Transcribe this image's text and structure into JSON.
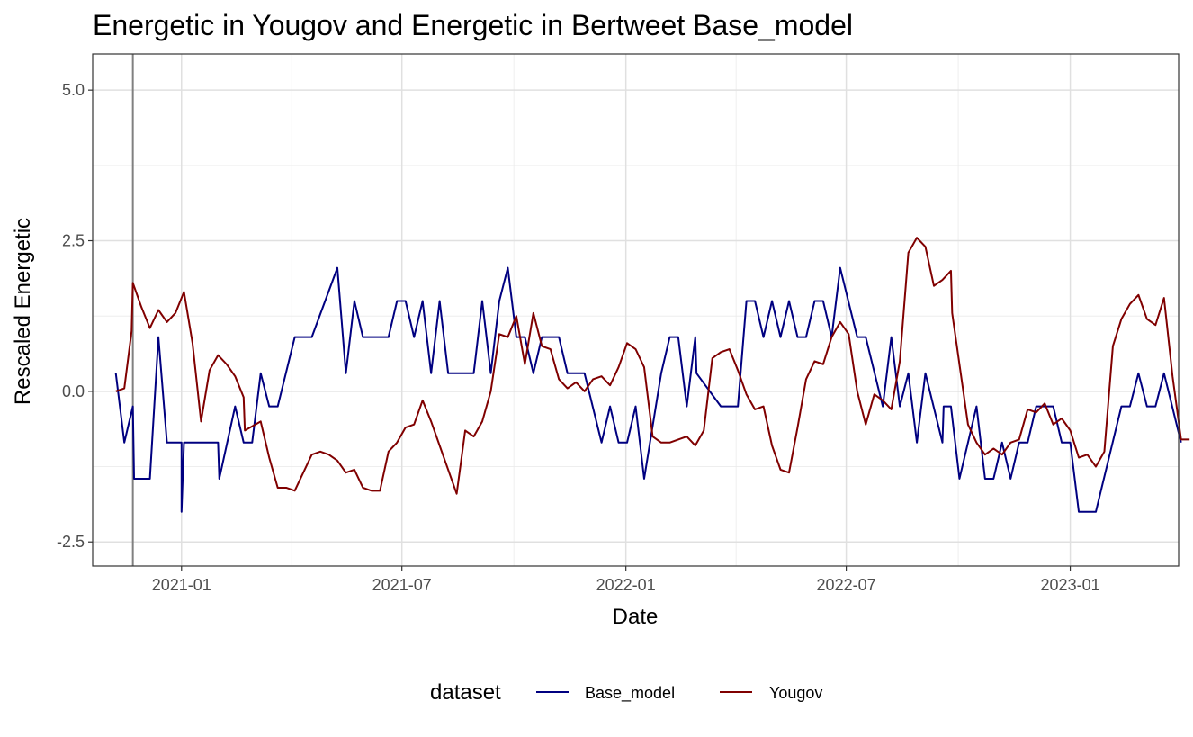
{
  "chart_data": {
    "type": "line",
    "title": "Energetic  in Yougov and  Energetic  in Bertweet  Base_model",
    "xlabel": "Date",
    "ylabel": "Rescaled  Energetic",
    "xlim": [
      "2020-10-20",
      "2023-03-31"
    ],
    "ylim": [
      -2.9,
      5.6
    ],
    "x_ticks": [
      "2021-01-01",
      "2021-07-01",
      "2022-01-01",
      "2022-07-01",
      "2023-01-01"
    ],
    "x_tick_labels": [
      "2021-01",
      "2021-07",
      "2022-01",
      "2022-07",
      "2023-01"
    ],
    "y_ticks": [
      -2.5,
      0.0,
      2.5,
      5.0
    ],
    "y_tick_labels": [
      "-2.5",
      "0.0",
      "2.5",
      "5.0"
    ],
    "grid": true,
    "vline": "2020-11-22",
    "vline_color": "#808080",
    "legend": {
      "title": "dataset",
      "position": "bottom",
      "entries": [
        {
          "label": "Base_model",
          "color": "#000080"
        },
        {
          "label": "Yougov",
          "color": "#800000"
        }
      ]
    },
    "series": [
      {
        "name": "Base_model",
        "color": "#000080",
        "points": [
          [
            "2020-11-08",
            0.3
          ],
          [
            "2020-11-15",
            -0.85
          ],
          [
            "2020-11-22",
            -0.25
          ],
          [
            "2020-11-23",
            -1.45
          ],
          [
            "2020-11-29",
            -1.45
          ],
          [
            "2020-12-06",
            -1.45
          ],
          [
            "2020-12-13",
            0.9
          ],
          [
            "2020-12-20",
            -0.85
          ],
          [
            "2021-01-01",
            -0.85
          ],
          [
            "2021-01-01",
            -2.0
          ],
          [
            "2021-01-03",
            -0.85
          ],
          [
            "2021-01-31",
            -0.85
          ],
          [
            "2021-02-01",
            -1.45
          ],
          [
            "2021-02-14",
            -0.25
          ],
          [
            "2021-02-21",
            -0.85
          ],
          [
            "2021-02-28",
            -0.85
          ],
          [
            "2021-03-07",
            0.3
          ],
          [
            "2021-03-14",
            -0.25
          ],
          [
            "2021-03-21",
            -0.25
          ],
          [
            "2021-04-04",
            0.9
          ],
          [
            "2021-04-18",
            0.9
          ],
          [
            "2021-05-09",
            2.05
          ],
          [
            "2021-05-16",
            0.3
          ],
          [
            "2021-05-23",
            1.5
          ],
          [
            "2021-05-30",
            0.9
          ],
          [
            "2021-06-20",
            0.9
          ],
          [
            "2021-06-27",
            1.5
          ],
          [
            "2021-07-04",
            1.5
          ],
          [
            "2021-07-11",
            0.9
          ],
          [
            "2021-07-18",
            1.5
          ],
          [
            "2021-07-25",
            0.3
          ],
          [
            "2021-08-01",
            1.5
          ],
          [
            "2021-08-08",
            0.3
          ],
          [
            "2021-08-29",
            0.3
          ],
          [
            "2021-09-05",
            1.5
          ],
          [
            "2021-09-12",
            0.3
          ],
          [
            "2021-09-19",
            1.5
          ],
          [
            "2021-09-26",
            2.05
          ],
          [
            "2021-10-03",
            0.9
          ],
          [
            "2021-10-10",
            0.9
          ],
          [
            "2021-10-17",
            0.3
          ],
          [
            "2021-10-24",
            0.9
          ],
          [
            "2021-11-07",
            0.9
          ],
          [
            "2021-11-14",
            0.3
          ],
          [
            "2021-11-28",
            0.3
          ],
          [
            "2021-12-12",
            -0.85
          ],
          [
            "2021-12-19",
            -0.25
          ],
          [
            "2021-12-26",
            -0.85
          ],
          [
            "2022-01-02",
            -0.85
          ],
          [
            "2022-01-09",
            -0.25
          ],
          [
            "2022-01-16",
            -1.45
          ],
          [
            "2022-01-30",
            0.3
          ],
          [
            "2022-02-06",
            0.9
          ],
          [
            "2022-02-13",
            0.9
          ],
          [
            "2022-02-20",
            -0.25
          ],
          [
            "2022-02-27",
            0.9
          ],
          [
            "2022-02-28",
            0.3
          ],
          [
            "2022-03-20",
            -0.25
          ],
          [
            "2022-04-03",
            -0.25
          ],
          [
            "2022-04-10",
            1.5
          ],
          [
            "2022-04-17",
            1.5
          ],
          [
            "2022-04-24",
            0.9
          ],
          [
            "2022-05-01",
            1.5
          ],
          [
            "2022-05-08",
            0.9
          ],
          [
            "2022-05-15",
            1.5
          ],
          [
            "2022-05-22",
            0.9
          ],
          [
            "2022-05-29",
            0.9
          ],
          [
            "2022-06-05",
            1.5
          ],
          [
            "2022-06-12",
            1.5
          ],
          [
            "2022-06-19",
            0.9
          ],
          [
            "2022-06-26",
            2.05
          ],
          [
            "2022-07-10",
            0.9
          ],
          [
            "2022-07-17",
            0.9
          ],
          [
            "2022-07-31",
            -0.25
          ],
          [
            "2022-08-07",
            0.9
          ],
          [
            "2022-08-14",
            -0.25
          ],
          [
            "2022-08-21",
            0.3
          ],
          [
            "2022-08-28",
            -0.85
          ],
          [
            "2022-09-04",
            0.3
          ],
          [
            "2022-09-18",
            -0.85
          ],
          [
            "2022-09-19",
            -0.25
          ],
          [
            "2022-09-25",
            -0.25
          ],
          [
            "2022-10-02",
            -1.45
          ],
          [
            "2022-10-16",
            -0.25
          ],
          [
            "2022-10-23",
            -1.45
          ],
          [
            "2022-10-30",
            -1.45
          ],
          [
            "2022-11-06",
            -0.85
          ],
          [
            "2022-11-13",
            -1.45
          ],
          [
            "2022-11-20",
            -0.85
          ],
          [
            "2022-11-27",
            -0.85
          ],
          [
            "2022-12-04",
            -0.25
          ],
          [
            "2022-12-11",
            -0.25
          ],
          [
            "2022-12-18",
            -0.25
          ],
          [
            "2022-12-25",
            -0.85
          ],
          [
            "2023-01-01",
            -0.85
          ],
          [
            "2023-01-08",
            -2.0
          ],
          [
            "2023-01-22",
            -2.0
          ],
          [
            "2023-02-12",
            -0.25
          ],
          [
            "2023-02-19",
            -0.25
          ],
          [
            "2023-02-26",
            0.3
          ],
          [
            "2023-03-05",
            -0.25
          ],
          [
            "2023-03-12",
            -0.25
          ],
          [
            "2023-03-19",
            0.3
          ],
          [
            "2023-04-02",
            -0.85
          ]
        ]
      },
      {
        "name": "Yougov",
        "color": "#800000",
        "points": [
          [
            "2020-11-08",
            0.0
          ],
          [
            "2020-11-15",
            0.05
          ],
          [
            "2020-11-21",
            1.0
          ],
          [
            "2020-11-22",
            1.8
          ],
          [
            "2020-11-29",
            1.4
          ],
          [
            "2020-12-06",
            1.05
          ],
          [
            "2020-12-13",
            1.35
          ],
          [
            "2020-12-20",
            1.15
          ],
          [
            "2020-12-27",
            1.3
          ],
          [
            "2021-01-03",
            1.65
          ],
          [
            "2021-01-10",
            0.8
          ],
          [
            "2021-01-17",
            -0.5
          ],
          [
            "2021-01-24",
            0.35
          ],
          [
            "2021-01-31",
            0.6
          ],
          [
            "2021-02-07",
            0.45
          ],
          [
            "2021-02-14",
            0.25
          ],
          [
            "2021-02-21",
            -0.1
          ],
          [
            "2021-02-22",
            -0.65
          ],
          [
            "2021-03-07",
            -0.5
          ],
          [
            "2021-03-14",
            -1.1
          ],
          [
            "2021-03-21",
            -1.6
          ],
          [
            "2021-03-28",
            -1.6
          ],
          [
            "2021-04-04",
            -1.65
          ],
          [
            "2021-04-18",
            -1.05
          ],
          [
            "2021-04-25",
            -1.0
          ],
          [
            "2021-05-02",
            -1.05
          ],
          [
            "2021-05-09",
            -1.15
          ],
          [
            "2021-05-16",
            -1.35
          ],
          [
            "2021-05-23",
            -1.3
          ],
          [
            "2021-05-30",
            -1.6
          ],
          [
            "2021-06-06",
            -1.65
          ],
          [
            "2021-06-13",
            -1.65
          ],
          [
            "2021-06-20",
            -1.0
          ],
          [
            "2021-06-27",
            -0.85
          ],
          [
            "2021-07-04",
            -0.6
          ],
          [
            "2021-07-11",
            -0.55
          ],
          [
            "2021-07-18",
            -0.15
          ],
          [
            "2021-07-25",
            -0.5
          ],
          [
            "2021-08-01",
            -0.9
          ],
          [
            "2021-08-15",
            -1.7
          ],
          [
            "2021-08-22",
            -0.65
          ],
          [
            "2021-08-29",
            -0.75
          ],
          [
            "2021-09-05",
            -0.5
          ],
          [
            "2021-09-12",
            0.0
          ],
          [
            "2021-09-19",
            0.95
          ],
          [
            "2021-09-26",
            0.9
          ],
          [
            "2021-10-03",
            1.25
          ],
          [
            "2021-10-10",
            0.45
          ],
          [
            "2021-10-17",
            1.3
          ],
          [
            "2021-10-24",
            0.75
          ],
          [
            "2021-10-31",
            0.7
          ],
          [
            "2021-11-07",
            0.2
          ],
          [
            "2021-11-14",
            0.05
          ],
          [
            "2021-11-21",
            0.15
          ],
          [
            "2021-11-28",
            0.0
          ],
          [
            "2021-12-05",
            0.2
          ],
          [
            "2021-12-12",
            0.25
          ],
          [
            "2021-12-19",
            0.1
          ],
          [
            "2021-12-26",
            0.4
          ],
          [
            "2022-01-02",
            0.8
          ],
          [
            "2022-01-09",
            0.7
          ],
          [
            "2022-01-16",
            0.4
          ],
          [
            "2022-01-23",
            -0.75
          ],
          [
            "2022-01-30",
            -0.85
          ],
          [
            "2022-02-06",
            -0.85
          ],
          [
            "2022-02-13",
            -0.8
          ],
          [
            "2022-02-20",
            -0.75
          ],
          [
            "2022-02-27",
            -0.9
          ],
          [
            "2022-03-06",
            -0.65
          ],
          [
            "2022-03-13",
            0.55
          ],
          [
            "2022-03-20",
            0.65
          ],
          [
            "2022-03-27",
            0.7
          ],
          [
            "2022-04-03",
            0.35
          ],
          [
            "2022-04-10",
            -0.05
          ],
          [
            "2022-04-17",
            -0.3
          ],
          [
            "2022-04-24",
            -0.25
          ],
          [
            "2022-05-01",
            -0.9
          ],
          [
            "2022-05-08",
            -1.3
          ],
          [
            "2022-05-15",
            -1.35
          ],
          [
            "2022-05-22",
            -0.6
          ],
          [
            "2022-05-29",
            0.2
          ],
          [
            "2022-06-05",
            0.5
          ],
          [
            "2022-06-12",
            0.45
          ],
          [
            "2022-06-19",
            0.9
          ],
          [
            "2022-06-26",
            1.15
          ],
          [
            "2022-07-03",
            0.95
          ],
          [
            "2022-07-10",
            0.0
          ],
          [
            "2022-07-17",
            -0.55
          ],
          [
            "2022-07-24",
            -0.05
          ],
          [
            "2022-07-31",
            -0.15
          ],
          [
            "2022-08-07",
            -0.3
          ],
          [
            "2022-08-14",
            0.5
          ],
          [
            "2022-08-21",
            2.3
          ],
          [
            "2022-08-28",
            2.55
          ],
          [
            "2022-09-04",
            2.4
          ],
          [
            "2022-09-11",
            1.75
          ],
          [
            "2022-09-18",
            1.85
          ],
          [
            "2022-09-25",
            2.0
          ],
          [
            "2022-09-26",
            1.3
          ],
          [
            "2022-10-09",
            -0.55
          ],
          [
            "2022-10-16",
            -0.85
          ],
          [
            "2022-10-23",
            -1.05
          ],
          [
            "2022-10-30",
            -0.95
          ],
          [
            "2022-11-06",
            -1.05
          ],
          [
            "2022-11-13",
            -0.85
          ],
          [
            "2022-11-20",
            -0.8
          ],
          [
            "2022-11-27",
            -0.3
          ],
          [
            "2022-12-04",
            -0.35
          ],
          [
            "2022-12-11",
            -0.2
          ],
          [
            "2022-12-18",
            -0.55
          ],
          [
            "2022-12-25",
            -0.45
          ],
          [
            "2023-01-01",
            -0.65
          ],
          [
            "2023-01-08",
            -1.1
          ],
          [
            "2023-01-15",
            -1.05
          ],
          [
            "2023-01-22",
            -1.25
          ],
          [
            "2023-01-29",
            -1.0
          ],
          [
            "2023-02-05",
            0.75
          ],
          [
            "2023-02-12",
            1.2
          ],
          [
            "2023-02-19",
            1.45
          ],
          [
            "2023-02-26",
            1.6
          ],
          [
            "2023-03-05",
            1.2
          ],
          [
            "2023-03-12",
            1.1
          ],
          [
            "2023-03-19",
            1.55
          ],
          [
            "2023-03-26",
            0.25
          ],
          [
            "2023-04-02",
            -0.8
          ],
          [
            "2023-04-09",
            -0.8
          ]
        ]
      }
    ]
  }
}
